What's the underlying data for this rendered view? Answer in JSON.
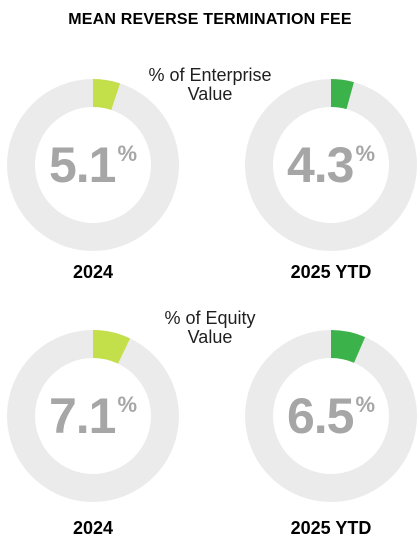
{
  "title": "MEAN REVERSE TERMINATION FEE",
  "colors": {
    "track": "#ebebeb",
    "value_text": "#a6a6a6",
    "series_2024": "#c3e04a",
    "series_2025": "#3bb34a"
  },
  "chart_data": [
    {
      "type": "pie",
      "title": "% of Enterprise Value",
      "title_lines": [
        "% of Enterprise",
        "Value"
      ],
      "charts": [
        {
          "label": "2024",
          "value": 5.1,
          "display": "5.1",
          "unit": "%",
          "color": "#c3e04a"
        },
        {
          "label": "2025 YTD",
          "value": 4.3,
          "display": "4.3",
          "unit": "%",
          "color": "#3bb34a"
        }
      ]
    },
    {
      "type": "pie",
      "title": "% of Equity Value",
      "title_lines": [
        "% of Equity",
        "Value"
      ],
      "charts": [
        {
          "label": "2024",
          "value": 7.1,
          "display": "7.1",
          "unit": "%",
          "color": "#c3e04a"
        },
        {
          "label": "2025 YTD",
          "value": 6.5,
          "display": "6.5",
          "unit": "%",
          "color": "#3bb34a"
        }
      ]
    }
  ]
}
